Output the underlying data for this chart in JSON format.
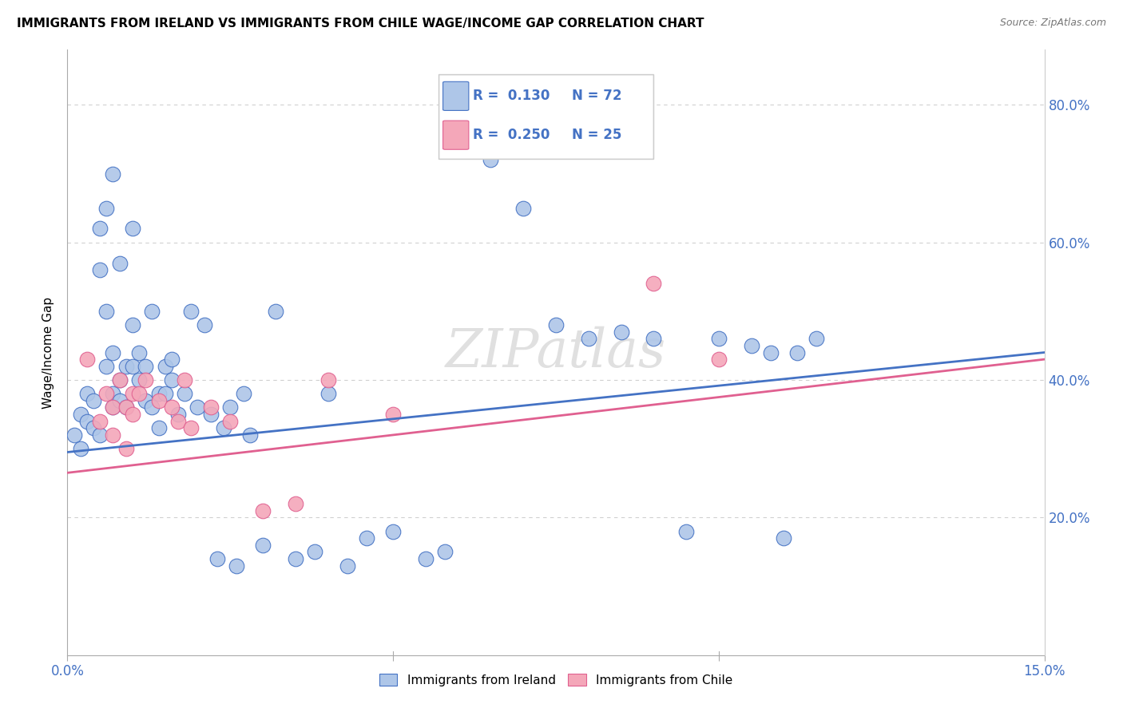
{
  "title": "IMMIGRANTS FROM IRELAND VS IMMIGRANTS FROM CHILE WAGE/INCOME GAP CORRELATION CHART",
  "source": "Source: ZipAtlas.com",
  "ylabel": "Wage/Income Gap",
  "ireland_color": "#aec6e8",
  "chile_color": "#f4a7b9",
  "ireland_line_color": "#4472c4",
  "chile_line_color": "#e06090",
  "legend_label_ireland": "Immigrants from Ireland",
  "legend_label_chile": "Immigrants from Chile",
  "ireland_x": [
    0.001,
    0.002,
    0.002,
    0.003,
    0.003,
    0.004,
    0.004,
    0.005,
    0.005,
    0.005,
    0.006,
    0.006,
    0.006,
    0.007,
    0.007,
    0.007,
    0.007,
    0.008,
    0.008,
    0.008,
    0.009,
    0.009,
    0.01,
    0.01,
    0.01,
    0.011,
    0.011,
    0.012,
    0.012,
    0.013,
    0.013,
    0.014,
    0.014,
    0.015,
    0.015,
    0.016,
    0.016,
    0.017,
    0.018,
    0.019,
    0.02,
    0.021,
    0.022,
    0.023,
    0.024,
    0.025,
    0.026,
    0.027,
    0.028,
    0.03,
    0.032,
    0.035,
    0.038,
    0.04,
    0.043,
    0.046,
    0.05,
    0.055,
    0.058,
    0.065,
    0.07,
    0.075,
    0.08,
    0.085,
    0.09,
    0.095,
    0.1,
    0.105,
    0.108,
    0.11,
    0.112,
    0.115
  ],
  "ireland_y": [
    0.32,
    0.35,
    0.3,
    0.38,
    0.34,
    0.33,
    0.37,
    0.56,
    0.62,
    0.32,
    0.42,
    0.65,
    0.5,
    0.38,
    0.44,
    0.36,
    0.7,
    0.4,
    0.37,
    0.57,
    0.42,
    0.36,
    0.48,
    0.62,
    0.42,
    0.44,
    0.4,
    0.37,
    0.42,
    0.36,
    0.5,
    0.38,
    0.33,
    0.42,
    0.38,
    0.4,
    0.43,
    0.35,
    0.38,
    0.5,
    0.36,
    0.48,
    0.35,
    0.14,
    0.33,
    0.36,
    0.13,
    0.38,
    0.32,
    0.16,
    0.5,
    0.14,
    0.15,
    0.38,
    0.13,
    0.17,
    0.18,
    0.14,
    0.15,
    0.72,
    0.65,
    0.48,
    0.46,
    0.47,
    0.46,
    0.18,
    0.46,
    0.45,
    0.44,
    0.17,
    0.44,
    0.46
  ],
  "chile_x": [
    0.003,
    0.005,
    0.006,
    0.007,
    0.007,
    0.008,
    0.009,
    0.009,
    0.01,
    0.01,
    0.011,
    0.012,
    0.014,
    0.016,
    0.017,
    0.018,
    0.019,
    0.022,
    0.025,
    0.03,
    0.035,
    0.04,
    0.05,
    0.09,
    0.1
  ],
  "chile_y": [
    0.43,
    0.34,
    0.38,
    0.36,
    0.32,
    0.4,
    0.36,
    0.3,
    0.38,
    0.35,
    0.38,
    0.4,
    0.37,
    0.36,
    0.34,
    0.4,
    0.33,
    0.36,
    0.34,
    0.21,
    0.22,
    0.4,
    0.35,
    0.54,
    0.43
  ],
  "background_color": "#ffffff",
  "grid_color": "#d0d0d0",
  "xlim_min": 0.0,
  "xlim_max": 0.15,
  "ylim_min": 0.0,
  "ylim_max": 0.88,
  "yticks": [
    0.2,
    0.4,
    0.6,
    0.8
  ],
  "yticklabels": [
    "20.0%",
    "40.0%",
    "60.0%",
    "80.0%"
  ],
  "xtick_labels_show": [
    "0.0%",
    "15.0%"
  ]
}
